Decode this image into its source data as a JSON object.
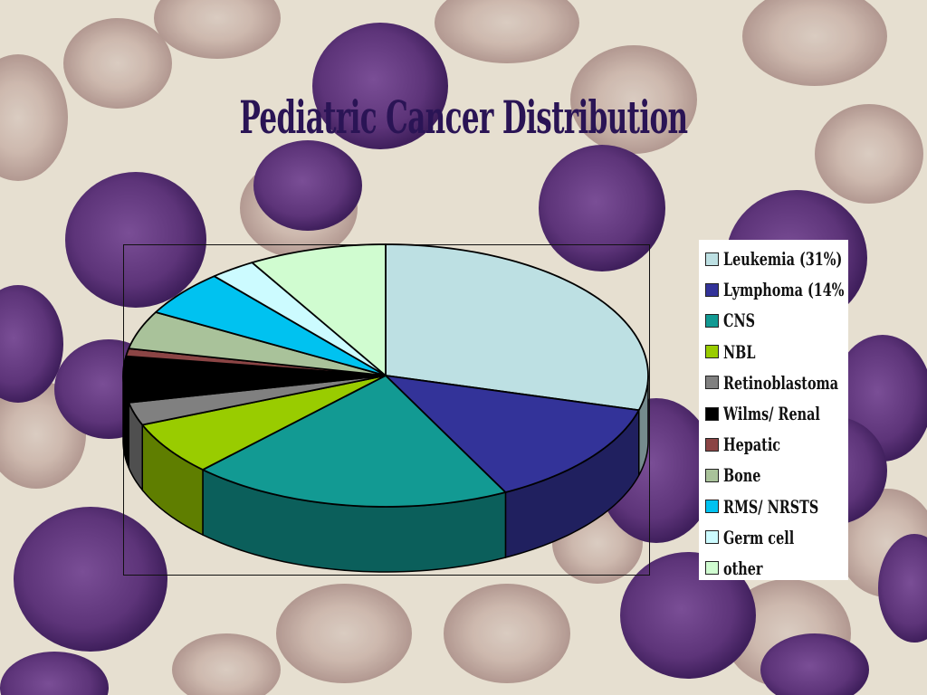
{
  "chart_data": {
    "type": "pie",
    "title": "Pediatric Cancer Distribution",
    "style": "3d-tilted",
    "legend_position": "right",
    "slices": [
      {
        "label": "Leukemia (31%)",
        "value": 31,
        "color": "#bde0e3"
      },
      {
        "label": "Lymphoma (14%",
        "value": 14,
        "color": "#333399"
      },
      {
        "label": "CNS",
        "value": 21,
        "color": "#129a93"
      },
      {
        "label": "NBL",
        "value": 7,
        "color": "#99cc00"
      },
      {
        "label": "Retinoblastoma",
        "value": 3,
        "color": "#808080"
      },
      {
        "label": "Wilms/ Renal",
        "value": 6,
        "color": "#000000"
      },
      {
        "label": "Hepatic",
        "value": 1,
        "color": "#8b4545"
      },
      {
        "label": "Bone",
        "value": 5,
        "color": "#a9c29a"
      },
      {
        "label": "RMS/ NRSTS",
        "value": 6,
        "color": "#00c2f0"
      },
      {
        "label": "Germ cell",
        "value": 3,
        "color": "#ccfbff"
      },
      {
        "label": "other",
        "value": 9,
        "color": "#d0fcd0"
      }
    ]
  }
}
